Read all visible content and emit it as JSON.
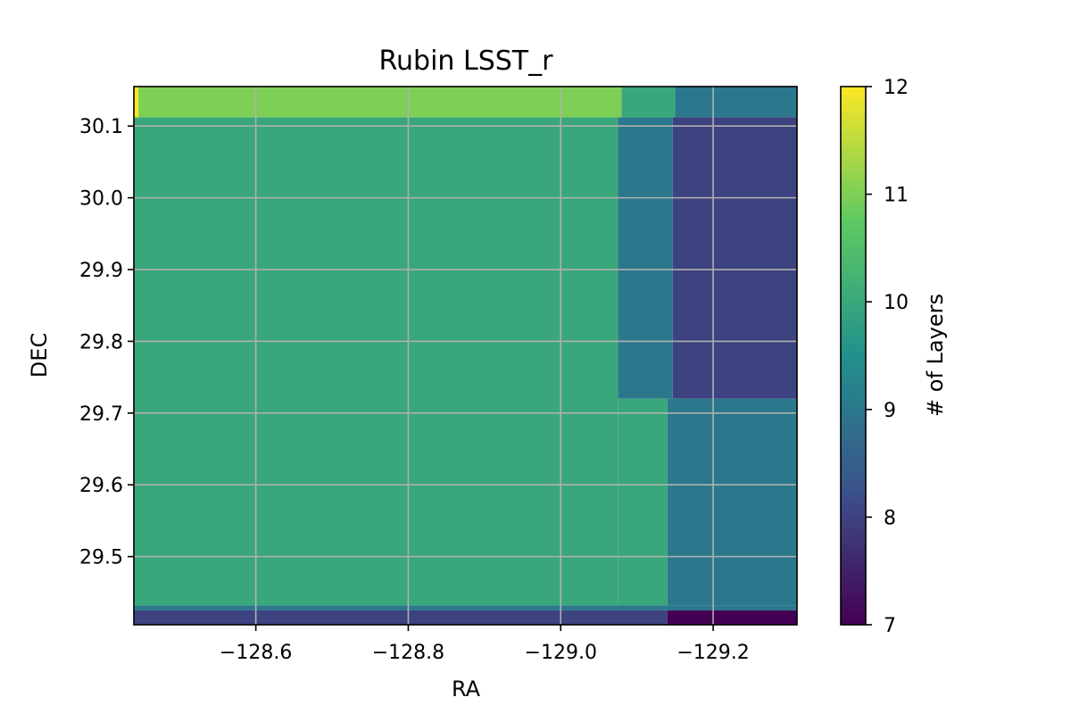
{
  "chart_data": {
    "type": "heatmap",
    "title": "Rubin LSST_r",
    "xlabel": "RA",
    "ylabel": "DEC",
    "colorbar_label": "# of Layers",
    "colormap": "viridis",
    "xlim": [
      -128.44,
      -129.31
    ],
    "ylim": [
      29.405,
      30.155
    ],
    "xticks": [
      -128.6,
      -128.8,
      -129.0,
      -129.2
    ],
    "xtick_labels": [
      "−128.6",
      "−128.8",
      "−129.0",
      "−129.2"
    ],
    "yticks": [
      29.5,
      29.6,
      29.7,
      29.8,
      29.9,
      30.0,
      30.1
    ],
    "ytick_labels": [
      "29.5",
      "29.6",
      "29.7",
      "29.8",
      "29.9",
      "30.0",
      "30.1"
    ],
    "color_range": [
      7,
      12
    ],
    "colorbar_ticks": [
      7,
      8,
      9,
      10,
      11,
      12
    ],
    "grid": true,
    "regions": [
      {
        "ra": [
          -128.44,
          -128.446
        ],
        "dec": [
          30.112,
          30.155
        ],
        "layers": 12
      },
      {
        "ra": [
          -128.446,
          -129.08
        ],
        "dec": [
          30.112,
          30.155
        ],
        "layers": 11
      },
      {
        "ra": [
          -129.08,
          -129.15
        ],
        "dec": [
          30.112,
          30.155
        ],
        "layers": 10
      },
      {
        "ra": [
          -129.15,
          -129.31
        ],
        "dec": [
          30.112,
          30.155
        ],
        "layers": 9
      },
      {
        "ra": [
          -128.44,
          -128.446
        ],
        "dec": [
          29.9,
          30.112
        ],
        "layers": 11
      },
      {
        "ra": [
          -128.44,
          -129.075
        ],
        "dec": [
          29.432,
          30.112
        ],
        "layers": 10
      },
      {
        "ra": [
          -129.075,
          -129.147
        ],
        "dec": [
          29.72,
          30.112
        ],
        "layers": 9
      },
      {
        "ra": [
          -129.147,
          -129.31
        ],
        "dec": [
          29.72,
          30.112
        ],
        "layers": 8
      },
      {
        "ra": [
          -129.075,
          -129.14
        ],
        "dec": [
          29.432,
          29.72
        ],
        "layers": 10
      },
      {
        "ra": [
          -129.14,
          -129.31
        ],
        "dec": [
          29.432,
          29.72
        ],
        "layers": 9
      },
      {
        "ra": [
          -128.44,
          -129.31
        ],
        "dec": [
          29.425,
          29.432
        ],
        "layers": 9
      },
      {
        "ra": [
          -128.44,
          -129.14
        ],
        "dec": [
          29.405,
          29.425
        ],
        "layers": 8
      },
      {
        "ra": [
          -129.14,
          -129.31
        ],
        "dec": [
          29.405,
          29.425
        ],
        "layers": 7
      }
    ]
  }
}
